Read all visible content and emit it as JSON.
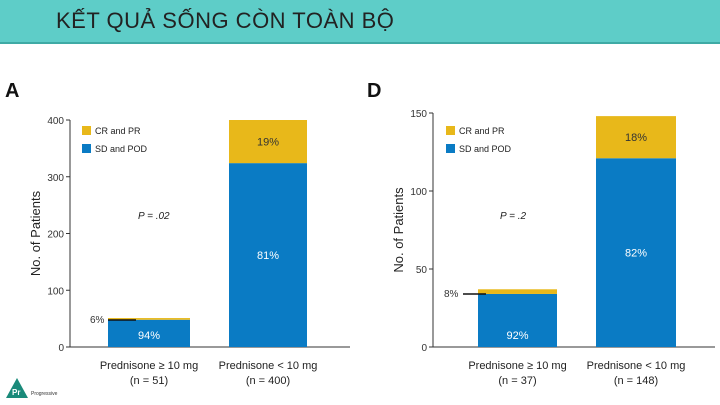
{
  "page_title": "KẾT QUẢ SỐNG CÒN TOÀN BỘ",
  "logo_text": "Pr Progressive",
  "colors": {
    "banner": "#5ecdc8",
    "cr_pr": "#e8b81a",
    "sd_pod": "#0a7bc4"
  },
  "chart_data": [
    {
      "panel": "A",
      "type": "bar",
      "stacked": true,
      "ylabel": "No. of Patients",
      "ylim": [
        0,
        400
      ],
      "yticks": [
        "0",
        "100",
        "200",
        "300",
        "400"
      ],
      "categories": [
        {
          "line1": "Prednisone ≥ 10 mg",
          "line2": "(n = 51)"
        },
        {
          "line1": "Prednisone < 10 mg",
          "line2": "(n = 400)"
        }
      ],
      "series": [
        {
          "name": "SD and POD",
          "values": [
            48,
            324
          ],
          "labels": [
            "94%",
            "81%"
          ]
        },
        {
          "name": "CR and PR",
          "values": [
            3,
            76
          ],
          "labels": [
            "6%",
            "19%"
          ]
        }
      ],
      "legend": [
        "CR and PR",
        "SD and POD"
      ],
      "pvalue": "P = .02"
    },
    {
      "panel": "D",
      "type": "bar",
      "stacked": true,
      "ylabel": "No. of Patients",
      "ylim": [
        0,
        150
      ],
      "yticks": [
        "0",
        "50",
        "100",
        "150"
      ],
      "categories": [
        {
          "line1": "Prednisone ≥ 10 mg",
          "line2": "(n = 37)"
        },
        {
          "line1": "Prednisone < 10 mg",
          "line2": "(n = 148)"
        }
      ],
      "series": [
        {
          "name": "SD and POD",
          "values": [
            34,
            121
          ],
          "labels": [
            "92%",
            "82%"
          ]
        },
        {
          "name": "CR and PR",
          "values": [
            3,
            27
          ],
          "labels": [
            "8%",
            "18%"
          ]
        }
      ],
      "legend": [
        "CR and PR",
        "SD and POD"
      ],
      "pvalue": "P = .2"
    }
  ]
}
